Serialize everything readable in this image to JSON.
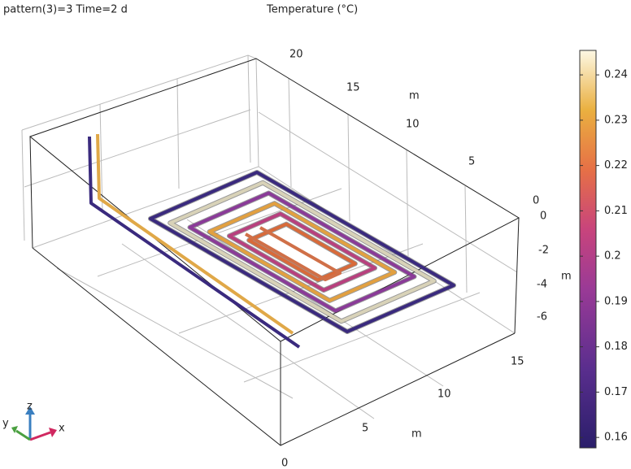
{
  "header": {
    "title": "pattern(3)=3 Time=2 d",
    "subtitle": "Temperature (°C)"
  },
  "axes": {
    "y": {
      "ticks": [
        20,
        15,
        10,
        5,
        0
      ],
      "label": "m"
    },
    "z": {
      "ticks": [
        0,
        -2,
        -4,
        -6
      ],
      "label": "m"
    },
    "x": {
      "ticks": [
        0,
        5,
        10,
        15
      ],
      "label": "m"
    }
  },
  "triad": {
    "x": "x",
    "y": "y",
    "z": "z"
  },
  "colorbar": {
    "lim": [
      0.1577,
      0.2454
    ],
    "ticks": [
      0.24,
      0.23,
      0.22,
      0.21,
      0.2,
      0.19,
      0.18,
      0.17,
      0.16
    ]
  }
}
